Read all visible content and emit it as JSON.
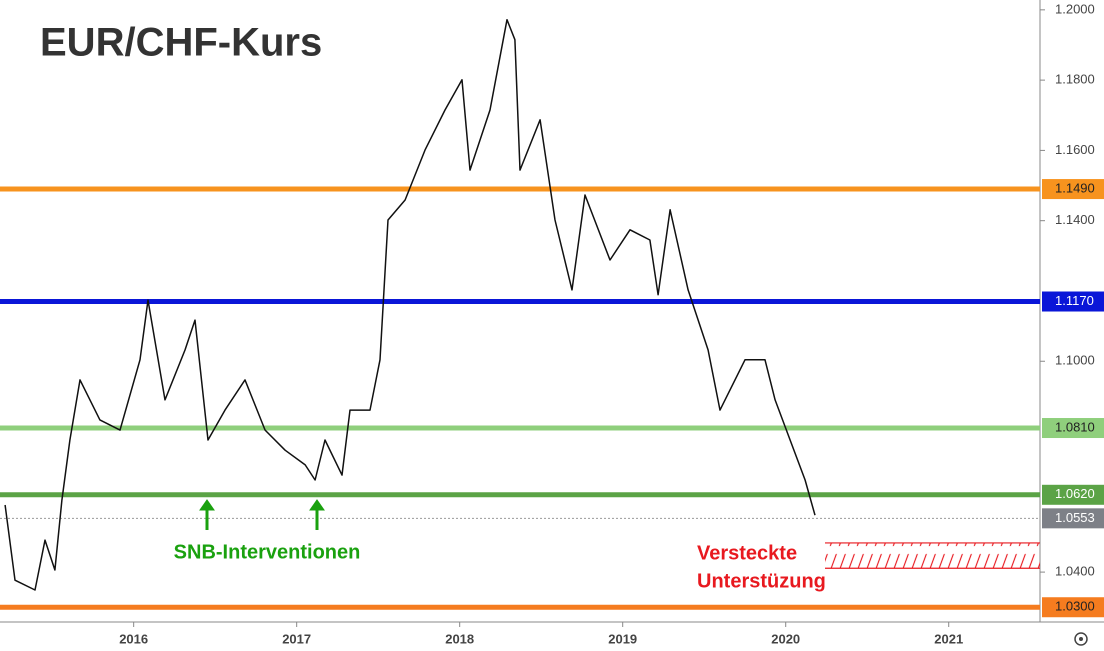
{
  "chart_data": {
    "type": "line",
    "title": "EUR/CHF-Kurs",
    "x": [
      2015.211,
      2015.272,
      2015.395,
      2015.456,
      2015.517,
      2015.56,
      2015.609,
      2015.671,
      2015.793,
      2015.916,
      2016.039,
      2016.088,
      2016.192,
      2016.315,
      2016.376,
      2016.456,
      2016.56,
      2016.683,
      2016.806,
      2016.929,
      2017.052,
      2017.113,
      2017.174,
      2017.278,
      2017.327,
      2017.45,
      2017.511,
      2017.56,
      2017.665,
      2017.787,
      2017.91,
      2018.014,
      2018.063,
      2018.186,
      2018.29,
      2018.339,
      2018.37,
      2018.493,
      2018.585,
      2018.689,
      2018.769,
      2018.922,
      2019.045,
      2019.167,
      2019.217,
      2019.291,
      2019.401,
      2019.524,
      2019.597,
      2019.75,
      2019.873,
      2019.935,
      2020.027,
      2020.119,
      2020.18
    ],
    "series": [
      {
        "color": "#111111",
        "values": [
          1.0591,
          1.0377,
          1.0349,
          1.0491,
          1.0406,
          1.0605,
          1.0776,
          1.0947,
          1.0833,
          1.0804,
          1.1004,
          1.1174,
          1.089,
          1.1032,
          1.1117,
          1.0776,
          1.0861,
          1.0947,
          1.0804,
          1.0747,
          1.0705,
          1.0662,
          1.0776,
          1.0676,
          1.0861,
          1.0861,
          1.1004,
          1.1402,
          1.1459,
          1.1601,
          1.1715,
          1.1801,
          1.1544,
          1.1715,
          1.1972,
          1.1915,
          1.1544,
          1.1687,
          1.1402,
          1.1203,
          1.1473,
          1.1288,
          1.1374,
          1.1345,
          1.1189,
          1.1431,
          1.1203,
          1.1032,
          1.0861,
          1.1004,
          1.1004,
          1.089,
          1.0776,
          1.0662,
          1.0562
        ]
      }
    ],
    "xlim": [
      2015.18,
      2021.56
    ],
    "xticks": [
      2016,
      2017,
      2018,
      2019,
      2020,
      2021
    ],
    "ylim": [
      1.0258,
      1.2028
    ],
    "yticks": [
      {
        "value": 1.04,
        "label": "1.0400"
      },
      {
        "value": 1.1,
        "label": "1.1000"
      },
      {
        "value": 1.14,
        "label": "1.1400"
      },
      {
        "value": 1.16,
        "label": "1.1600"
      },
      {
        "value": 1.18,
        "label": "1.1800"
      },
      {
        "value": 1.2,
        "label": "1.2000"
      }
    ],
    "levels": [
      {
        "value": 1.149,
        "label": "1.1490",
        "color": "#f7931e"
      },
      {
        "value": 1.117,
        "label": "1.1170",
        "color": "#0a16d8"
      },
      {
        "value": 1.081,
        "label": "1.0810",
        "color": "#8fcf7c"
      },
      {
        "value": 1.062,
        "label": "1.0620",
        "color": "#5ba346"
      },
      {
        "value": 1.0553,
        "label": "1.0553",
        "color": "#7d8087"
      },
      {
        "value": 1.03,
        "label": "1.0300",
        "color": "#f57c1f"
      }
    ],
    "support_zone": [
      1.0411,
      1.0483
    ],
    "annotations": [
      "SNB-Interventionen",
      "Versteckte",
      "Unterstüzung"
    ]
  }
}
